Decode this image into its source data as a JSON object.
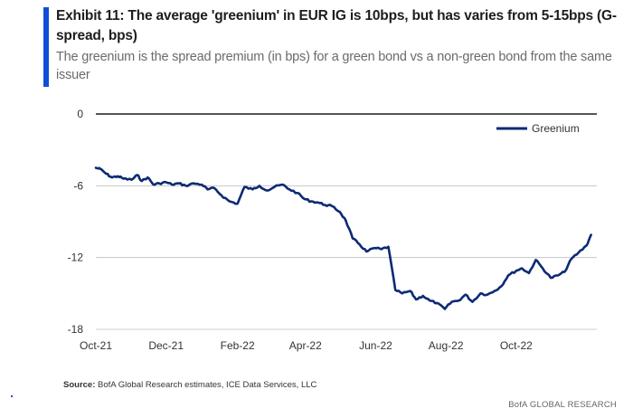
{
  "header": {
    "title": "Exhibit 11: The average 'greenium' in EUR IG is 10bps, but has varies from 5-15bps (G-spread, bps)",
    "subtitle": "The greenium is the spread premium (in bps) for a green bond vs a non-green bond from the same issuer"
  },
  "footer": {
    "source_label": "Source:",
    "source_text": " BofA Global Research estimates, ICE Data Services, LLC",
    "brand": "BofA GLOBAL RESEARCH"
  },
  "colors": {
    "accent": "#0f4fd6",
    "series": "#0c2a74",
    "axis": "#1d1d1d",
    "grid": "#bfbfbf"
  },
  "chart_data": {
    "type": "line",
    "title": "",
    "xlabel": "",
    "ylabel": "",
    "ylim": [
      -18,
      0
    ],
    "yticks": [
      0,
      -6,
      -12,
      -18
    ],
    "ytick_labels": [
      "0",
      "-6",
      "-12",
      "-18"
    ],
    "xlim": [
      "2021-10-01",
      "2022-12-10"
    ],
    "xtick_labels": [
      "Oct-21",
      "Dec-21",
      "Feb-22",
      "Apr-22",
      "Jun-22",
      "Aug-22",
      "Oct-22"
    ],
    "xtick_dates": [
      "2021-10-01",
      "2021-12-01",
      "2022-02-01",
      "2022-04-01",
      "2022-06-01",
      "2022-08-01",
      "2022-10-01"
    ],
    "grid": "horizontal",
    "legend_position": "top-right",
    "series": [
      {
        "name": "Greenium",
        "color": "#0c2a74",
        "x": [
          "2021-10-01",
          "2021-10-05",
          "2021-10-10",
          "2021-10-15",
          "2021-10-20",
          "2021-10-25",
          "2021-11-01",
          "2021-11-06",
          "2021-11-10",
          "2021-11-15",
          "2021-11-20",
          "2021-11-25",
          "2021-12-01",
          "2021-12-06",
          "2021-12-12",
          "2021-12-18",
          "2021-12-25",
          "2022-01-01",
          "2022-01-06",
          "2022-01-12",
          "2022-01-18",
          "2022-01-25",
          "2022-02-01",
          "2022-02-07",
          "2022-02-14",
          "2022-02-20",
          "2022-02-27",
          "2022-03-05",
          "2022-03-12",
          "2022-03-18",
          "2022-03-25",
          "2022-03-31",
          "2022-04-06",
          "2022-04-12",
          "2022-04-18",
          "2022-04-24",
          "2022-05-01",
          "2022-05-06",
          "2022-05-12",
          "2022-05-18",
          "2022-05-24",
          "2022-05-31",
          "2022-06-06",
          "2022-06-12",
          "2022-06-18",
          "2022-06-24",
          "2022-07-01",
          "2022-07-06",
          "2022-07-12",
          "2022-07-18",
          "2022-07-24",
          "2022-07-31",
          "2022-08-06",
          "2022-08-12",
          "2022-08-18",
          "2022-08-24",
          "2022-08-31",
          "2022-09-06",
          "2022-09-12",
          "2022-09-18",
          "2022-09-24",
          "2022-10-01",
          "2022-10-06",
          "2022-10-12",
          "2022-10-18",
          "2022-10-24",
          "2022-10-31",
          "2022-11-06",
          "2022-11-12",
          "2022-11-18",
          "2022-11-24",
          "2022-12-01",
          "2022-12-05"
        ],
        "values": [
          -4.5,
          -4.6,
          -5.0,
          -5.3,
          -5.2,
          -5.4,
          -5.5,
          -5.1,
          -5.6,
          -5.3,
          -5.9,
          -5.8,
          -5.7,
          -5.9,
          -5.8,
          -6.0,
          -5.8,
          -5.9,
          -6.3,
          -6.2,
          -6.8,
          -7.3,
          -7.5,
          -6.1,
          -6.3,
          -6.0,
          -6.4,
          -6.1,
          -5.9,
          -6.3,
          -6.6,
          -7.1,
          -7.3,
          -7.4,
          -7.6,
          -7.7,
          -8.2,
          -8.9,
          -10.4,
          -10.9,
          -11.5,
          -11.2,
          -11.3,
          -11.1,
          -14.7,
          -15.0,
          -14.8,
          -15.5,
          -15.2,
          -15.6,
          -15.8,
          -16.3,
          -15.7,
          -15.6,
          -15.1,
          -15.7,
          -15.0,
          -15.1,
          -14.8,
          -14.4,
          -13.5,
          -13.1,
          -12.9,
          -13.3,
          -12.2,
          -12.9,
          -13.7,
          -13.5,
          -13.2,
          -12.1,
          -11.6,
          -11.0,
          -10.1
        ]
      }
    ]
  }
}
